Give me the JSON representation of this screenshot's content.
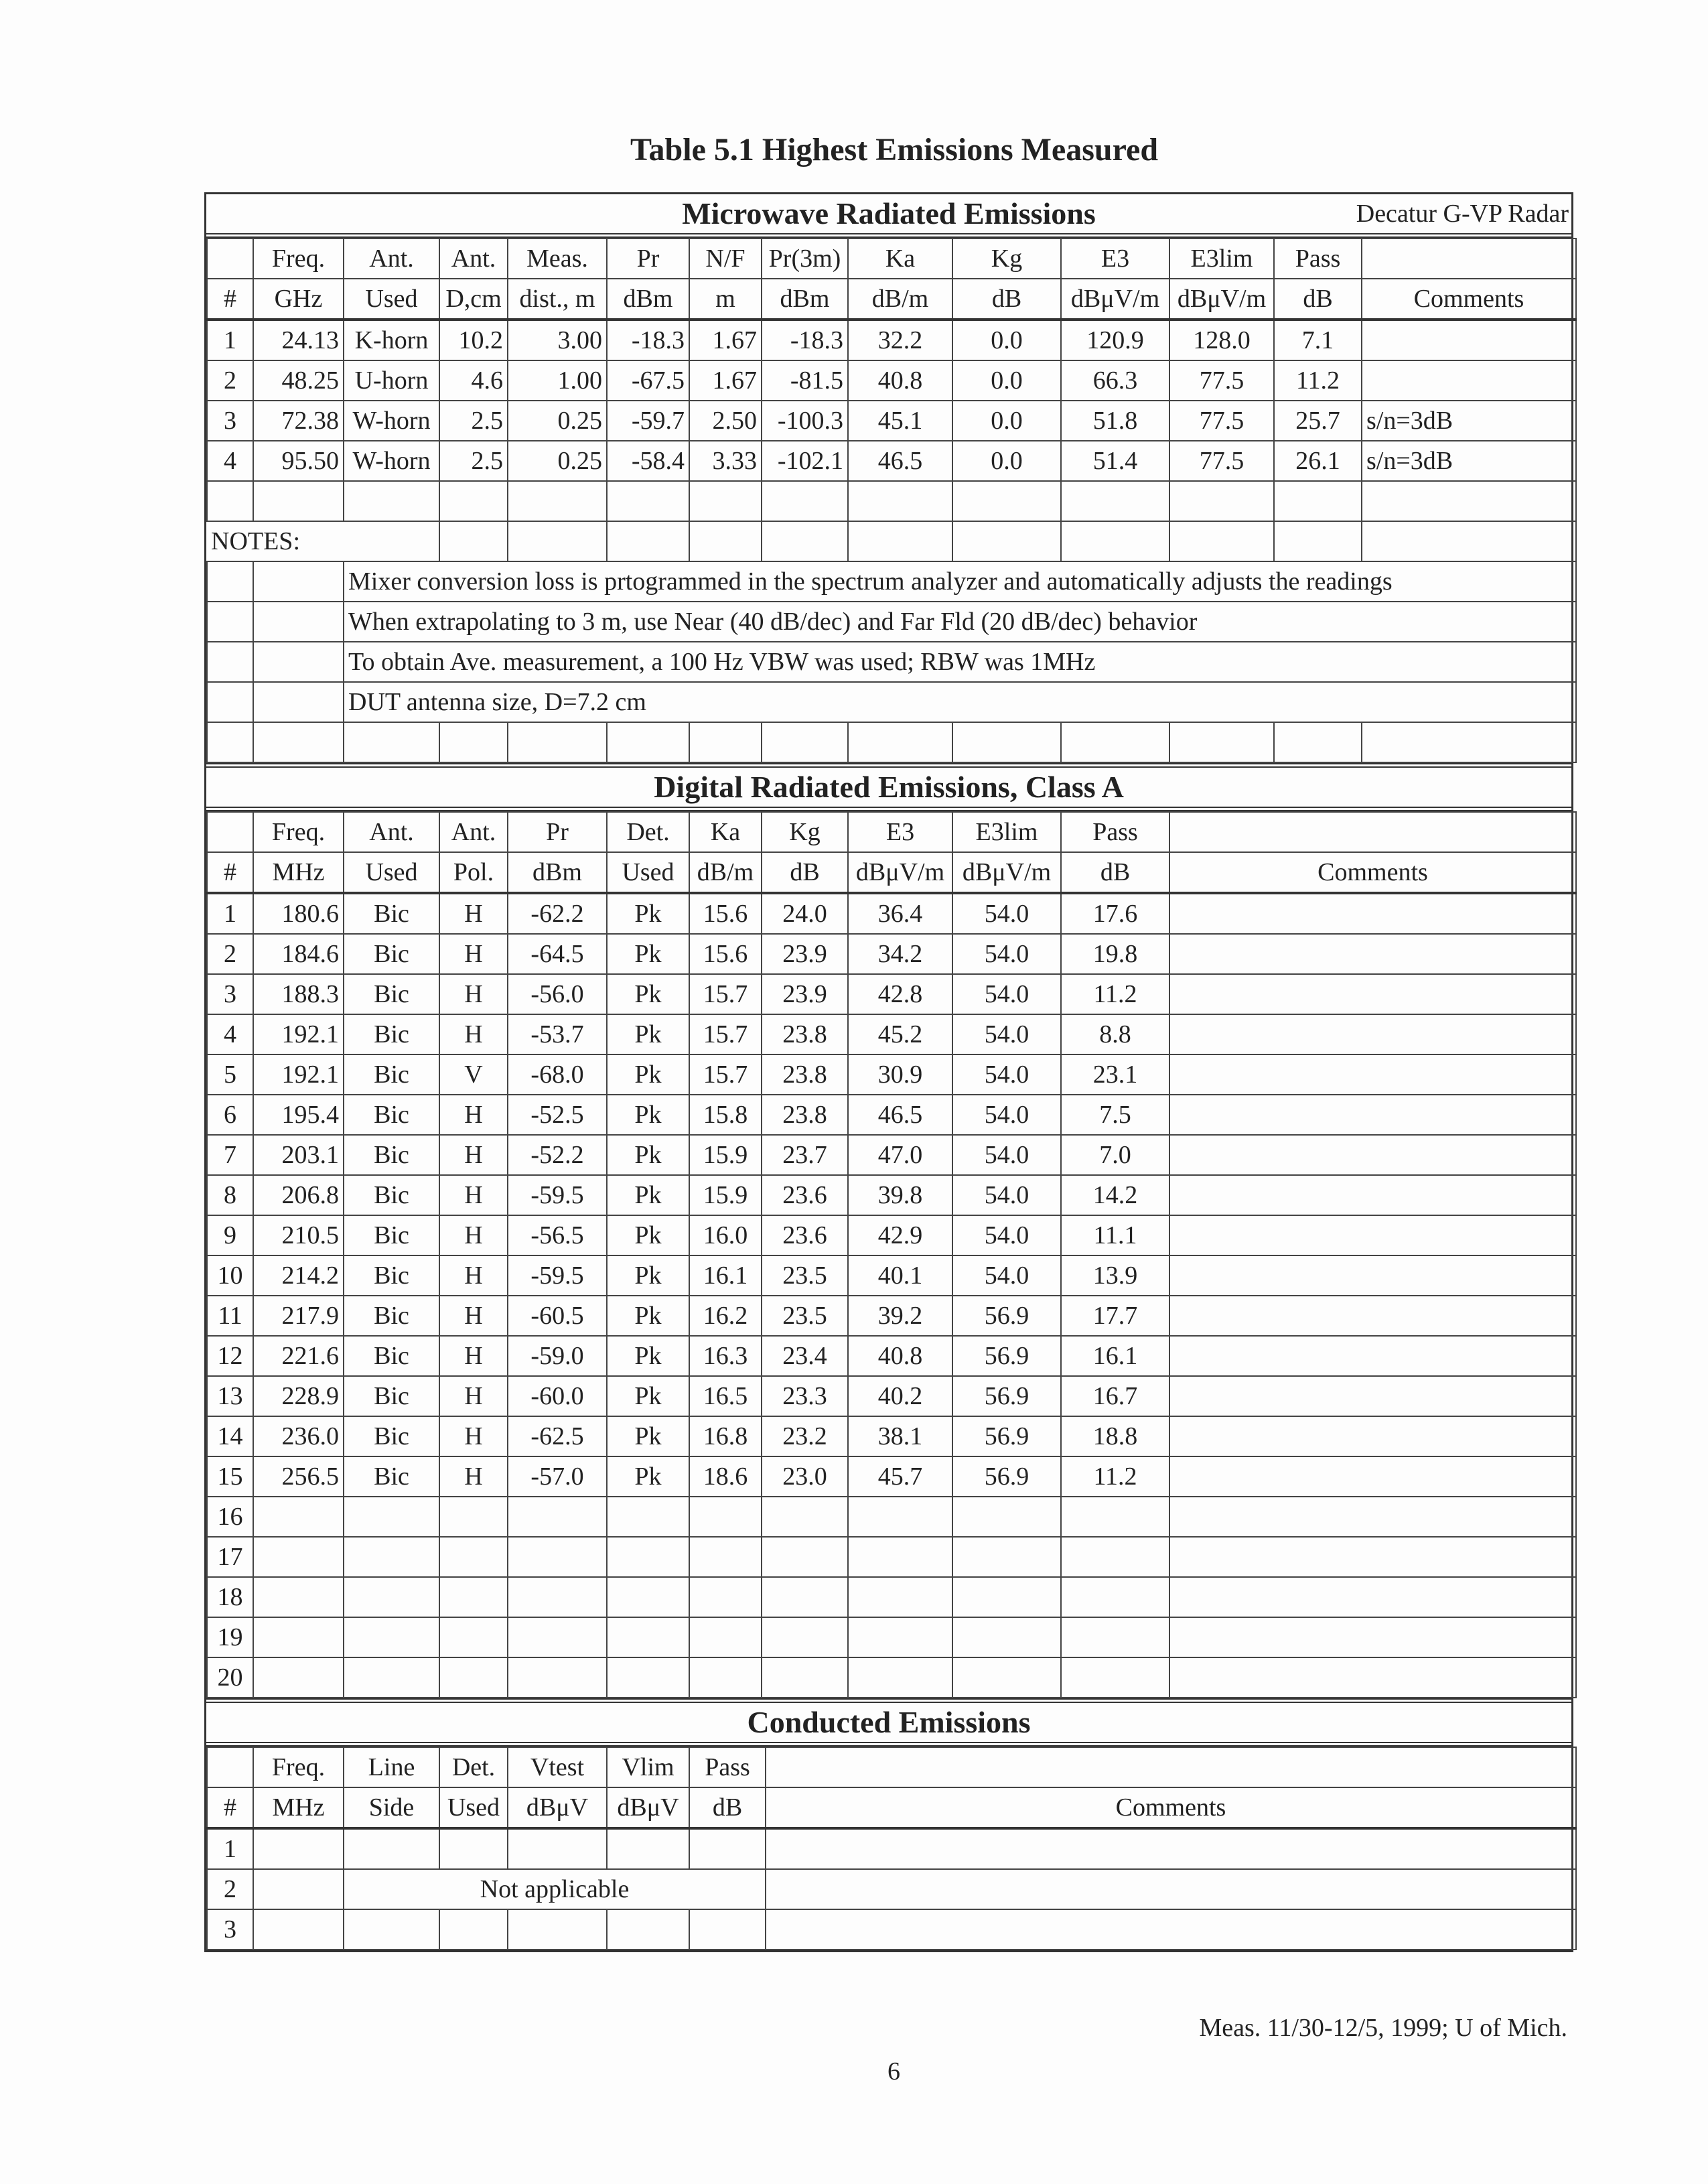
{
  "title": "Table 5.1  Highest Emissions Measured",
  "microwave": {
    "title": "Microwave Radiated Emissions",
    "device": "Decatur G-VP Radar",
    "headers": [
      [
        "",
        "#"
      ],
      [
        "Freq.",
        "GHz"
      ],
      [
        "Ant.",
        "Used"
      ],
      [
        "Ant.",
        "D,cm"
      ],
      [
        "Meas.",
        "dist., m"
      ],
      [
        "Pr",
        "dBm"
      ],
      [
        "N/F",
        "m"
      ],
      [
        "Pr(3m)",
        "dBm"
      ],
      [
        "Ka",
        "dB/m"
      ],
      [
        "Kg",
        "dB"
      ],
      [
        "E3",
        "dBμV/m"
      ],
      [
        "E3lim",
        "dBμV/m"
      ],
      [
        "Pass",
        "dB"
      ],
      [
        "",
        "Comments"
      ]
    ],
    "rows": [
      [
        "1",
        "24.13",
        "K-horn",
        "10.2",
        "3.00",
        "-18.3",
        "1.67",
        "-18.3",
        "32.2",
        "0.0",
        "120.9",
        "128.0",
        "7.1",
        ""
      ],
      [
        "2",
        "48.25",
        "U-horn",
        "4.6",
        "1.00",
        "-67.5",
        "1.67",
        "-81.5",
        "40.8",
        "0.0",
        "66.3",
        "77.5",
        "11.2",
        ""
      ],
      [
        "3",
        "72.38",
        "W-horn",
        "2.5",
        "0.25",
        "-59.7",
        "2.50",
        "-100.3",
        "45.1",
        "0.0",
        "51.8",
        "77.5",
        "25.7",
        "s/n=3dB"
      ],
      [
        "4",
        "95.50",
        "W-horn",
        "2.5",
        "0.25",
        "-58.4",
        "3.33",
        "-102.1",
        "46.5",
        "0.0",
        "51.4",
        "77.5",
        "26.1",
        "s/n=3dB"
      ]
    ],
    "notes_label": "NOTES:",
    "notes": [
      "Mixer conversion loss is prtogrammed in the spectrum analyzer and automatically adjusts the readings",
      "When extrapolating to 3 m, use Near (40 dB/dec) and Far Fld (20 dB/dec) behavior",
      "To obtain Ave. measurement, a 100 Hz VBW was used; RBW was 1MHz",
      "DUT antenna size, D=7.2 cm"
    ]
  },
  "digital": {
    "title": "Digital Radiated Emissions, Class A",
    "headers": [
      [
        "",
        "#"
      ],
      [
        "Freq.",
        "MHz"
      ],
      [
        "Ant.",
        "Used"
      ],
      [
        "Ant.",
        "Pol."
      ],
      [
        "Pr",
        "dBm"
      ],
      [
        "Det.",
        "Used"
      ],
      [
        "Ka",
        "dB/m"
      ],
      [
        "Kg",
        "dB"
      ],
      [
        "E3",
        "dBμV/m"
      ],
      [
        "E3lim",
        "dBμV/m"
      ],
      [
        "Pass",
        "dB"
      ],
      [
        "",
        "Comments"
      ]
    ],
    "rows": [
      [
        "1",
        "180.6",
        "Bic",
        "H",
        "-62.2",
        "Pk",
        "15.6",
        "24.0",
        "36.4",
        "54.0",
        "17.6",
        ""
      ],
      [
        "2",
        "184.6",
        "Bic",
        "H",
        "-64.5",
        "Pk",
        "15.6",
        "23.9",
        "34.2",
        "54.0",
        "19.8",
        ""
      ],
      [
        "3",
        "188.3",
        "Bic",
        "H",
        "-56.0",
        "Pk",
        "15.7",
        "23.9",
        "42.8",
        "54.0",
        "11.2",
        ""
      ],
      [
        "4",
        "192.1",
        "Bic",
        "H",
        "-53.7",
        "Pk",
        "15.7",
        "23.8",
        "45.2",
        "54.0",
        "8.8",
        ""
      ],
      [
        "5",
        "192.1",
        "Bic",
        "V",
        "-68.0",
        "Pk",
        "15.7",
        "23.8",
        "30.9",
        "54.0",
        "23.1",
        ""
      ],
      [
        "6",
        "195.4",
        "Bic",
        "H",
        "-52.5",
        "Pk",
        "15.8",
        "23.8",
        "46.5",
        "54.0",
        "7.5",
        ""
      ],
      [
        "7",
        "203.1",
        "Bic",
        "H",
        "-52.2",
        "Pk",
        "15.9",
        "23.7",
        "47.0",
        "54.0",
        "7.0",
        ""
      ],
      [
        "8",
        "206.8",
        "Bic",
        "H",
        "-59.5",
        "Pk",
        "15.9",
        "23.6",
        "39.8",
        "54.0",
        "14.2",
        ""
      ],
      [
        "9",
        "210.5",
        "Bic",
        "H",
        "-56.5",
        "Pk",
        "16.0",
        "23.6",
        "42.9",
        "54.0",
        "11.1",
        ""
      ],
      [
        "10",
        "214.2",
        "Bic",
        "H",
        "-59.5",
        "Pk",
        "16.1",
        "23.5",
        "40.1",
        "54.0",
        "13.9",
        ""
      ],
      [
        "11",
        "217.9",
        "Bic",
        "H",
        "-60.5",
        "Pk",
        "16.2",
        "23.5",
        "39.2",
        "56.9",
        "17.7",
        ""
      ],
      [
        "12",
        "221.6",
        "Bic",
        "H",
        "-59.0",
        "Pk",
        "16.3",
        "23.4",
        "40.8",
        "56.9",
        "16.1",
        ""
      ],
      [
        "13",
        "228.9",
        "Bic",
        "H",
        "-60.0",
        "Pk",
        "16.5",
        "23.3",
        "40.2",
        "56.9",
        "16.7",
        ""
      ],
      [
        "14",
        "236.0",
        "Bic",
        "H",
        "-62.5",
        "Pk",
        "16.8",
        "23.2",
        "38.1",
        "56.9",
        "18.8",
        ""
      ],
      [
        "15",
        "256.5",
        "Bic",
        "H",
        "-57.0",
        "Pk",
        "18.6",
        "23.0",
        "45.7",
        "56.9",
        "11.2",
        ""
      ],
      [
        "16",
        "",
        "",
        "",
        "",
        "",
        "",
        "",
        "",
        "",
        "",
        ""
      ],
      [
        "17",
        "",
        "",
        "",
        "",
        "",
        "",
        "",
        "",
        "",
        "",
        ""
      ],
      [
        "18",
        "",
        "",
        "",
        "",
        "",
        "",
        "",
        "",
        "",
        "",
        ""
      ],
      [
        "19",
        "",
        "",
        "",
        "",
        "",
        "",
        "",
        "",
        "",
        "",
        ""
      ],
      [
        "20",
        "",
        "",
        "",
        "",
        "",
        "",
        "",
        "",
        "",
        "",
        ""
      ]
    ]
  },
  "conducted": {
    "title": "Conducted Emissions",
    "headers": [
      [
        "",
        "#"
      ],
      [
        "Freq.",
        "MHz"
      ],
      [
        "Line",
        "Side"
      ],
      [
        "Det.",
        "Used"
      ],
      [
        "Vtest",
        "dBμV"
      ],
      [
        "Vlim",
        "dBμV"
      ],
      [
        "Pass",
        "dB"
      ],
      [
        "",
        "Comments"
      ]
    ],
    "rows": [
      "1",
      "2",
      "3"
    ],
    "not_applicable": "Not applicable"
  },
  "footer": "Meas. 11/30-12/5, 1999; U of Mich.",
  "page_number": "6"
}
